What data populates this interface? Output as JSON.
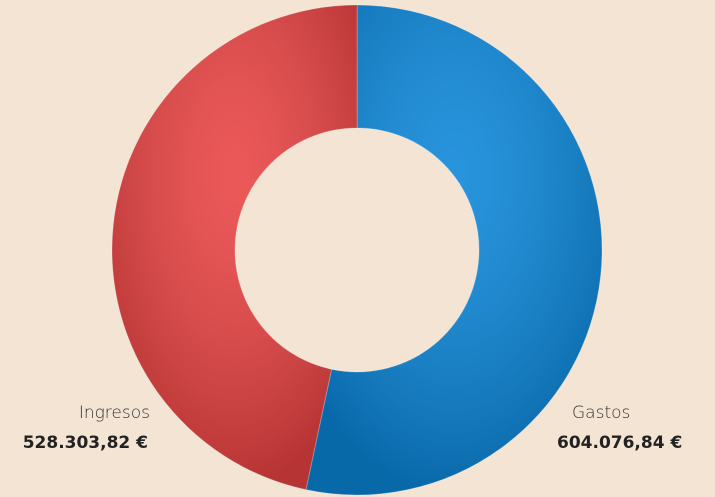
{
  "chart_data": {
    "type": "donut",
    "categories": [
      "Gastos",
      "Ingresos"
    ],
    "values": [
      604076.84,
      528303.82
    ],
    "value_labels": [
      "604.076,84 €",
      "528.303,82 €"
    ],
    "colors": [
      "#0a86d9",
      "#ea4242"
    ]
  }
}
